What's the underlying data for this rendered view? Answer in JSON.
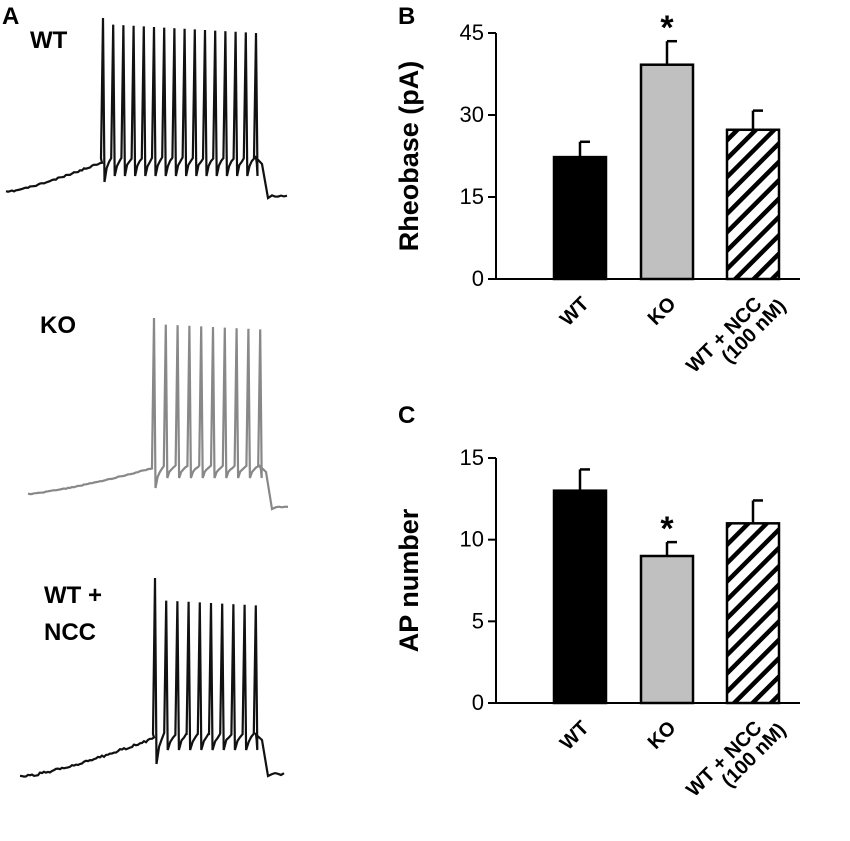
{
  "panel_labels": {
    "a": "A",
    "b": "B",
    "c": "C"
  },
  "traces": [
    {
      "label_lines": [
        "WT"
      ],
      "color": "#111111"
    },
    {
      "label_lines": [
        "KO"
      ],
      "color": "#888888"
    },
    {
      "label_lines": [
        "WT +",
        "NCC"
      ],
      "color": "#111111"
    }
  ],
  "colors": {
    "wt": "#000000",
    "ko": "#c0c0c0",
    "ncc_fill": "#ffffff",
    "axis": "#000000"
  },
  "chart_data": [
    {
      "type": "bar",
      "panel": "B",
      "categories": [
        [
          "WT"
        ],
        [
          "KO"
        ],
        [
          "WT + NCC",
          "(100 nM)"
        ]
      ],
      "values": [
        22.3,
        39.2,
        27.3
      ],
      "errors": [
        2.8,
        4.3,
        3.5
      ],
      "significance": [
        "",
        "*",
        ""
      ],
      "ylabel": "Rheobase (pA)",
      "ylim": [
        0,
        45
      ],
      "yticks": [
        0,
        15,
        30,
        45
      ]
    },
    {
      "type": "bar",
      "panel": "C",
      "categories": [
        [
          "WT"
        ],
        [
          "KO"
        ],
        [
          "WT + NCC",
          "(100 nM)"
        ]
      ],
      "values": [
        13.0,
        9.0,
        11.0
      ],
      "errors": [
        1.3,
        0.85,
        1.4
      ],
      "significance": [
        "",
        "*",
        ""
      ],
      "ylabel": "AP number",
      "ylim": [
        0,
        15
      ],
      "yticks": [
        0,
        5,
        10,
        15
      ]
    }
  ]
}
